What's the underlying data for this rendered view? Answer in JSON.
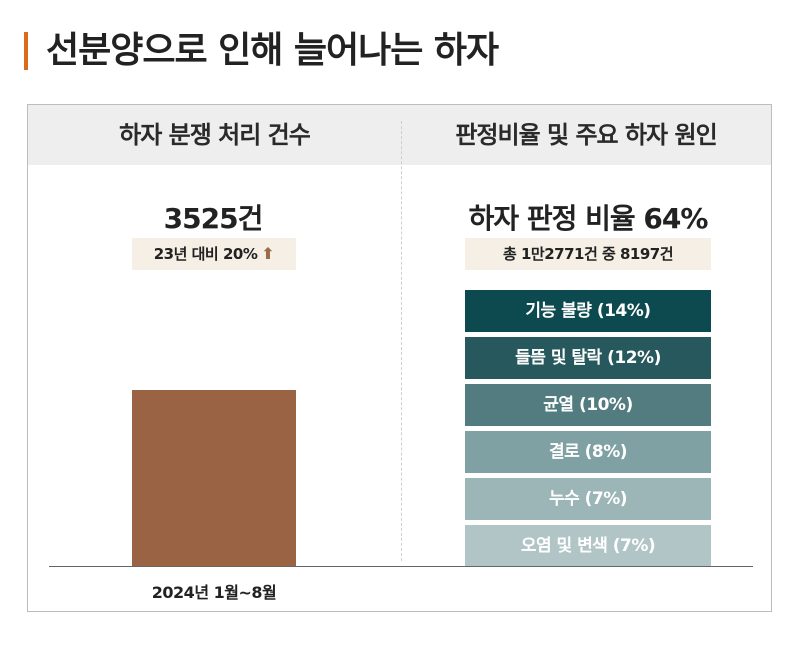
{
  "title": "선분양으로 인해 늘어나는 하자",
  "accent_color": "#d96b1a",
  "left": {
    "heading": "하자 분쟁 처리 건수",
    "value_text": "3525건",
    "change_text": "23년 대비 20%",
    "change_icon": "arrow-up-icon",
    "arrow_glyph": "⬆",
    "bar_color": "#9a6444"
  },
  "right": {
    "heading": "판정비율 및 주요 하자 원인",
    "ratio_text": "하자 판정 비율 64%",
    "detail_text": "총 1만2771건 중 8197건"
  },
  "chart_data": {
    "type": "bar",
    "categories": [
      "2024년 1월~8월"
    ],
    "values": [
      3525
    ],
    "data_labels": [
      "3525건"
    ]
  },
  "causes": [
    {
      "label": "기능 불량 (14%)",
      "percent": 14,
      "color": "#0c4a4f"
    },
    {
      "label": "들뜸 및 탈락 (12%)",
      "percent": 12,
      "color": "#26585d"
    },
    {
      "label": "균열 (10%)",
      "percent": 10,
      "color": "#537c80"
    },
    {
      "label": "결로 (8%)",
      "percent": 8,
      "color": "#80a1a3"
    },
    {
      "label": "누수 (7%)",
      "percent": 7,
      "color": "#9cb6b8"
    },
    {
      "label": "오염 및 변색 (7%)",
      "percent": 7,
      "color": "#b1c5c7"
    }
  ]
}
